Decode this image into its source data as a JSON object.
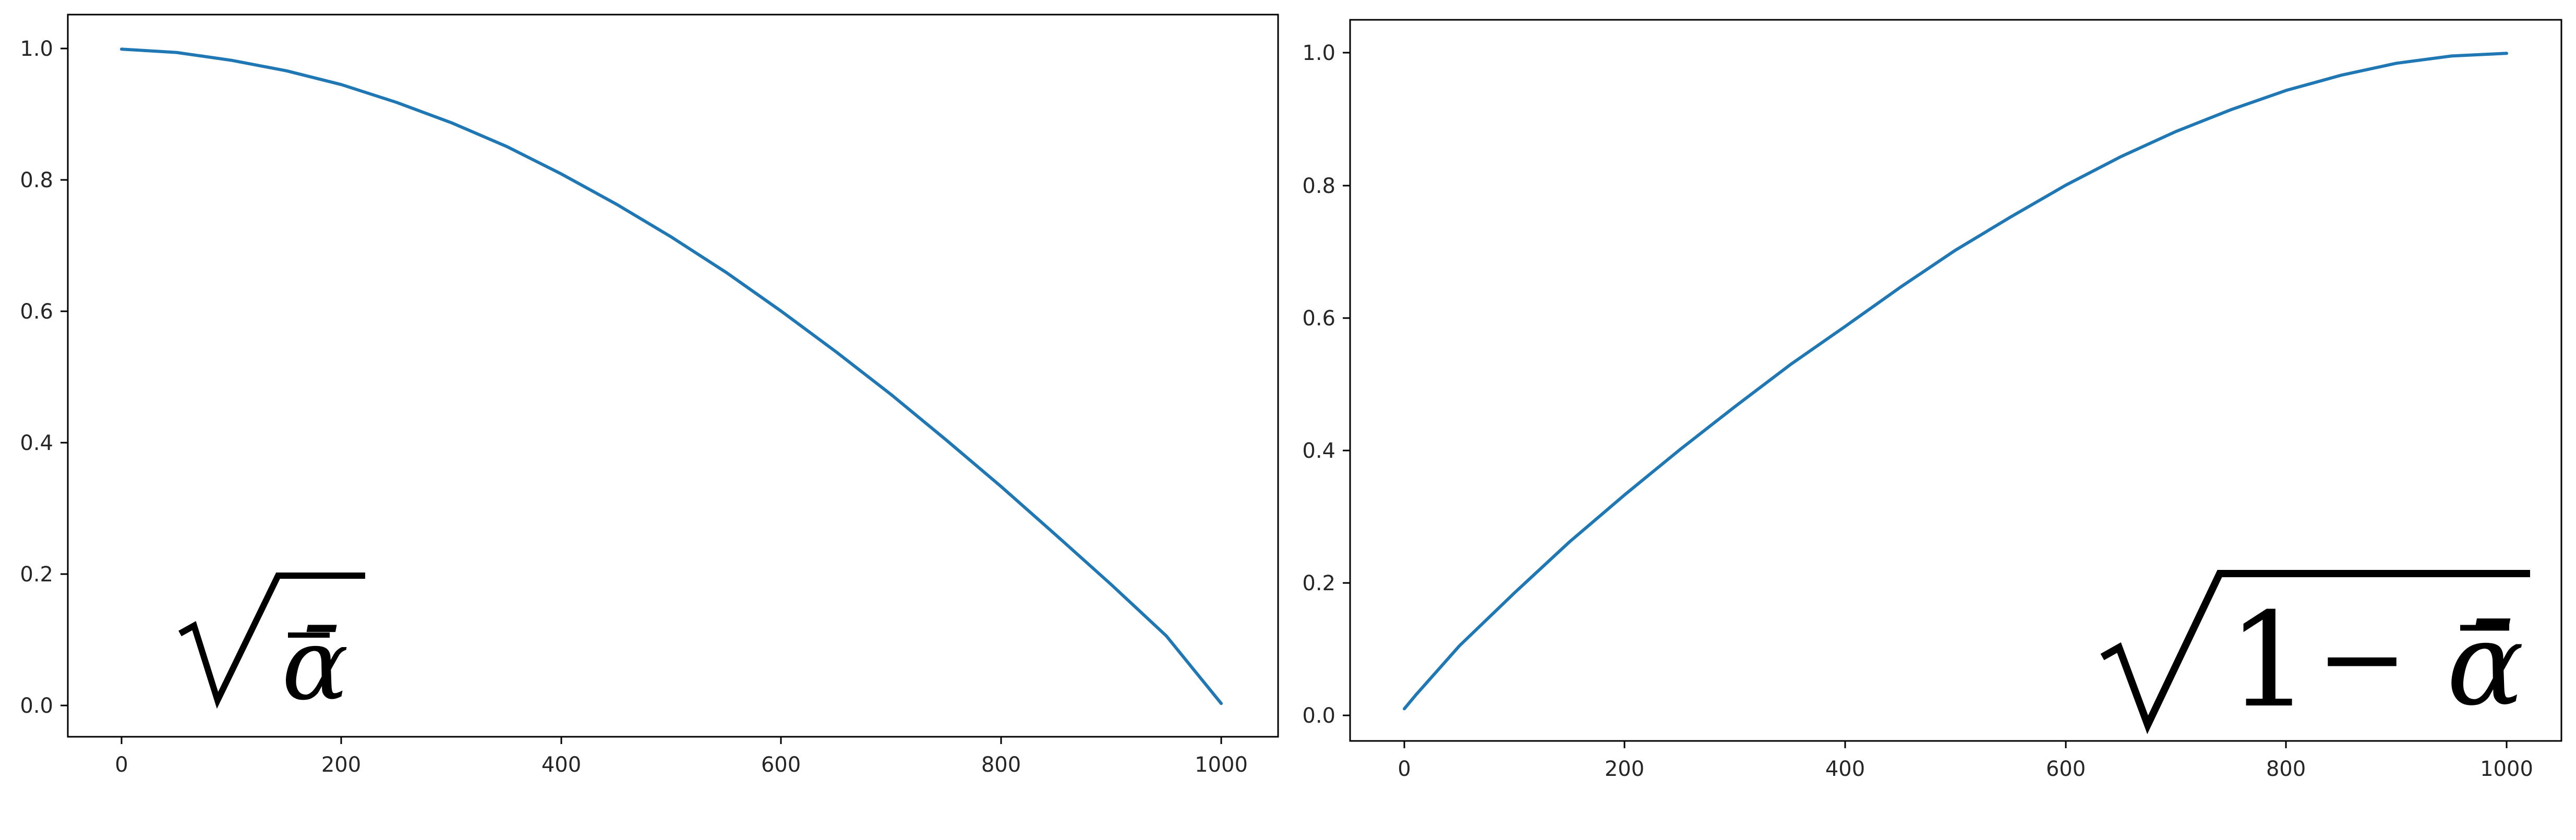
{
  "chart_data": [
    {
      "type": "line",
      "title": "",
      "xlabel": "",
      "ylabel": "",
      "xlim": [
        -50,
        1050
      ],
      "ylim": [
        -0.05,
        1.05
      ],
      "x_ticks": [
        0,
        200,
        400,
        600,
        800,
        1000
      ],
      "y_ticks": [
        0.0,
        0.2,
        0.4,
        0.6,
        0.8,
        1.0
      ],
      "x_tick_labels": [
        "0",
        "200",
        "400",
        "600",
        "800",
        "1000"
      ],
      "y_tick_labels": [
        "0.0",
        "0.2",
        "0.4",
        "0.6",
        "0.8",
        "1.0"
      ],
      "grid": false,
      "annotation": {
        "radicand": "ᾱ",
        "position": "bottom-left"
      },
      "series": [
        {
          "name": "sqrt_alpha_bar",
          "color": "#1f77b4",
          "x": [
            0,
            50,
            100,
            150,
            200,
            250,
            300,
            350,
            400,
            450,
            500,
            550,
            600,
            650,
            700,
            750,
            800,
            850,
            900,
            950,
            1000
          ],
          "y": [
            0.999,
            0.994,
            0.982,
            0.966,
            0.945,
            0.918,
            0.887,
            0.851,
            0.809,
            0.763,
            0.713,
            0.659,
            0.6,
            0.538,
            0.473,
            0.404,
            0.333,
            0.259,
            0.184,
            0.106,
            0.003
          ]
        }
      ]
    },
    {
      "type": "line",
      "title": "",
      "xlabel": "",
      "ylabel": "",
      "xlim": [
        -50,
        1050
      ],
      "ylim": [
        -0.05,
        1.05
      ],
      "x_ticks": [
        0,
        200,
        400,
        600,
        800,
        1000
      ],
      "y_ticks": [
        0.0,
        0.2,
        0.4,
        0.6,
        0.8,
        1.0
      ],
      "x_tick_labels": [
        "0",
        "200",
        "400",
        "600",
        "800",
        "1000"
      ],
      "y_tick_labels": [
        "0.0",
        "0.2",
        "0.4",
        "0.6",
        "0.8",
        "1.0"
      ],
      "grid": false,
      "annotation": {
        "lead": "1",
        "operator": "−",
        "radicand": "ᾱ",
        "position": "bottom-right"
      },
      "series": [
        {
          "name": "sqrt_one_minus_alpha_bar",
          "color": "#1f77b4",
          "x": [
            0,
            10,
            50,
            100,
            150,
            200,
            250,
            300,
            350,
            400,
            450,
            500,
            550,
            600,
            650,
            700,
            750,
            800,
            850,
            900,
            950,
            1000
          ],
          "y": [
            0.01,
            0.03,
            0.105,
            0.185,
            0.262,
            0.333,
            0.401,
            0.466,
            0.529,
            0.587,
            0.646,
            0.702,
            0.752,
            0.8,
            0.843,
            0.881,
            0.914,
            0.943,
            0.966,
            0.984,
            0.995,
            0.999
          ]
        }
      ]
    }
  ]
}
